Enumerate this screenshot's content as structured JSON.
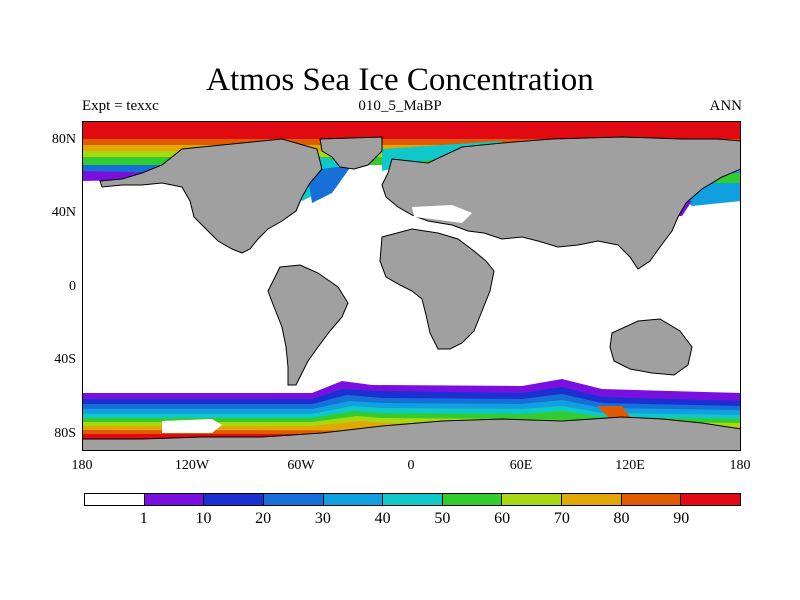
{
  "title": "Atmos Sea Ice Concentration",
  "subtitle_left": "Expt = texxc",
  "subtitle_center": "010_5_MaBP",
  "subtitle_right": "ANN",
  "map": {
    "projection": "cylindrical-equidistant",
    "lon_range": [
      -180,
      180
    ],
    "lat_range": [
      -90,
      90
    ],
    "land_color": "#a0a0a0",
    "ocean_no_ice_color": "#ffffff",
    "y_ticks": [
      {
        "lat": 80,
        "label": "80N"
      },
      {
        "lat": 40,
        "label": "40N"
      },
      {
        "lat": 0,
        "label": "0"
      },
      {
        "lat": -40,
        "label": "40S"
      },
      {
        "lat": -80,
        "label": "80S"
      }
    ],
    "x_ticks": [
      {
        "lon": -180,
        "label": "180"
      },
      {
        "lon": -120,
        "label": "120W"
      },
      {
        "lon": -60,
        "label": "60W"
      },
      {
        "lon": 0,
        "label": "0"
      },
      {
        "lon": 60,
        "label": "60E"
      },
      {
        "lon": 120,
        "label": "120E"
      },
      {
        "lon": 180,
        "label": "180"
      }
    ]
  },
  "colorbar": {
    "colors": [
      "#ffffff",
      "#7a10e0",
      "#1a30d0",
      "#1670d8",
      "#10a0e0",
      "#10c8c8",
      "#30cc30",
      "#a8d810",
      "#e0a800",
      "#e05a00",
      "#e00a10"
    ],
    "labels": [
      "1",
      "10",
      "20",
      "30",
      "40",
      "50",
      "60",
      "70",
      "80",
      "90"
    ]
  }
}
